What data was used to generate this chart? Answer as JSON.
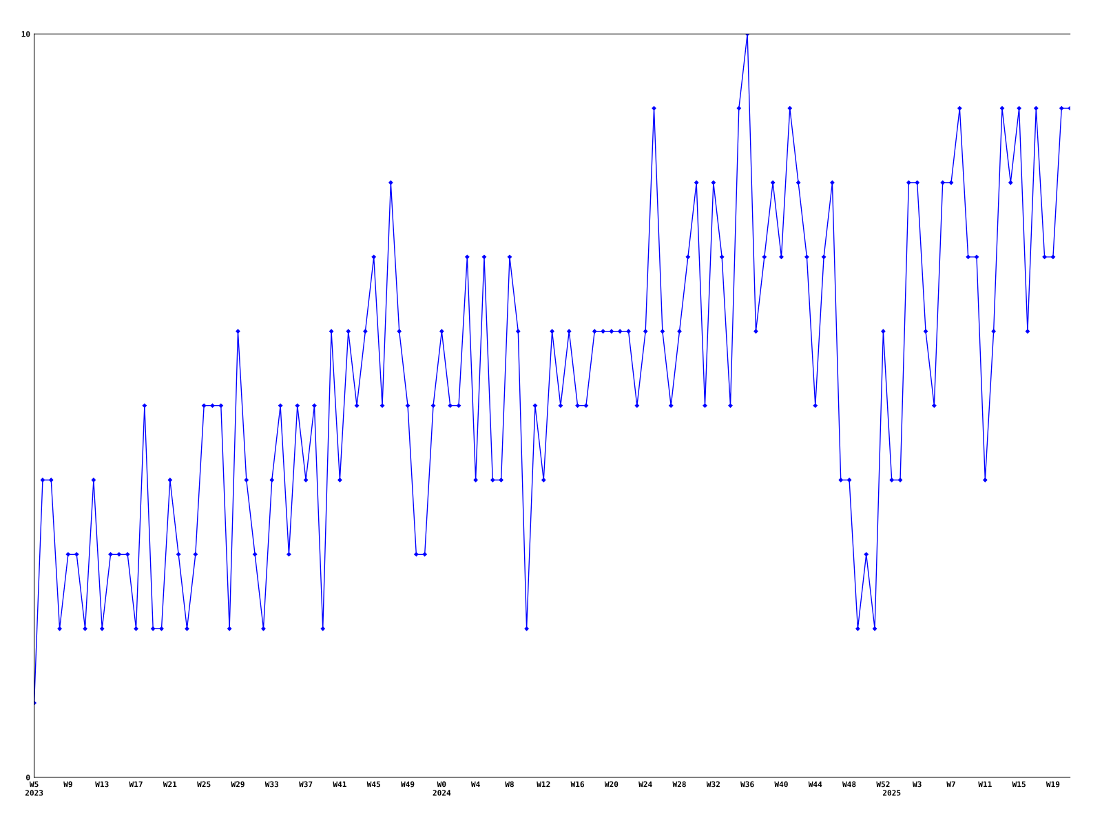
{
  "chart_data": {
    "type": "line",
    "categories": [
      "W5\n2023",
      null,
      null,
      null,
      "W9",
      null,
      null,
      null,
      "W13",
      null,
      null,
      null,
      "W17",
      null,
      null,
      null,
      "W21",
      null,
      null,
      null,
      "W25",
      null,
      null,
      null,
      "W29",
      null,
      null,
      null,
      "W33",
      null,
      null,
      null,
      "W37",
      null,
      null,
      null,
      "W41",
      null,
      null,
      null,
      "W45",
      null,
      null,
      null,
      "W49",
      null,
      null,
      null,
      "W0\n2024",
      null,
      null,
      null,
      "W4",
      null,
      null,
      null,
      "W8",
      null,
      null,
      null,
      "W12",
      null,
      null,
      null,
      "W16",
      null,
      null,
      null,
      "W20",
      null,
      null,
      null,
      "W24",
      null,
      null,
      null,
      "W28",
      null,
      null,
      null,
      "W32",
      null,
      null,
      null,
      "W36",
      null,
      null,
      null,
      "W40",
      null,
      null,
      null,
      "W44",
      null,
      null,
      null,
      "W48",
      null,
      null,
      null,
      "W52",
      "\n2025",
      null,
      null,
      "W3",
      null,
      null,
      null,
      "W7",
      null,
      null,
      null,
      "W11",
      null,
      null,
      null,
      "W15",
      null,
      null,
      null,
      "W19",
      null,
      null
    ],
    "series": [
      {
        "color": "#0000ff",
        "values": [
          1,
          4,
          4,
          2,
          3,
          3,
          2,
          4,
          2,
          3,
          3,
          3,
          2,
          5,
          2,
          2,
          4,
          3,
          2,
          3,
          5,
          5,
          5,
          2,
          6,
          4,
          3,
          2,
          4,
          5,
          3,
          5,
          4,
          5,
          2,
          6,
          4,
          6,
          5,
          6,
          7,
          5,
          8,
          6,
          5,
          3,
          3,
          5,
          6,
          5,
          5,
          7,
          4,
          7,
          4,
          4,
          7,
          6,
          2,
          5,
          4,
          6,
          5,
          6,
          5,
          5,
          6,
          6,
          6,
          6,
          6,
          5,
          6,
          9,
          6,
          5,
          6,
          7,
          8,
          5,
          8,
          7,
          5,
          9,
          10,
          6,
          7,
          8,
          7,
          9,
          8,
          7,
          5,
          7,
          8,
          4,
          4,
          2,
          3,
          2,
          6,
          4,
          4,
          8,
          8,
          6,
          5,
          8,
          8,
          9,
          7,
          7,
          4,
          6,
          9,
          8,
          9,
          6,
          9,
          7,
          7,
          9,
          9
        ]
      }
    ],
    "ylim": [
      0,
      10
    ],
    "yticks": [
      0,
      10
    ],
    "grid": false,
    "marker": "diamond",
    "line_style": "solid"
  }
}
